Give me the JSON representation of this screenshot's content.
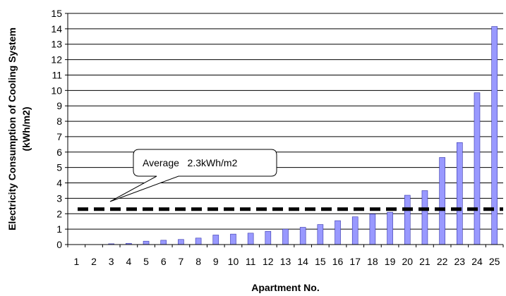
{
  "chart_data": {
    "type": "bar",
    "categories": [
      "1",
      "2",
      "3",
      "4",
      "5",
      "6",
      "7",
      "8",
      "9",
      "10",
      "11",
      "12",
      "13",
      "14",
      "15",
      "16",
      "17",
      "18",
      "19",
      "20",
      "21",
      "22",
      "23",
      "24",
      "25"
    ],
    "values": [
      0,
      0,
      0.05,
      0.08,
      0.22,
      0.28,
      0.33,
      0.42,
      0.62,
      0.68,
      0.74,
      0.86,
      1.0,
      1.12,
      1.3,
      1.55,
      1.8,
      1.98,
      2.1,
      3.2,
      3.5,
      5.65,
      6.62,
      9.85,
      14.15
    ],
    "xlabel": "Apartment No.",
    "ylabel": "Electricity Consumption of Cooling System (kWh/m2)",
    "ylabel_lines": [
      "Electricity Consumption of Cooling System",
      "(kWh/m2)"
    ],
    "ylim": [
      0,
      15
    ],
    "yticks": [
      0,
      1,
      2,
      3,
      4,
      5,
      6,
      7,
      8,
      9,
      10,
      11,
      12,
      13,
      14,
      15
    ],
    "grid": true,
    "legend": "none",
    "average": {
      "value": 2.3,
      "label": "Average   2.3kWh/m2"
    },
    "colors": {
      "bar_fill": "#9999ff",
      "bar_stroke": "#3333aa",
      "grid": "#000000",
      "average_line": "#000000"
    }
  }
}
